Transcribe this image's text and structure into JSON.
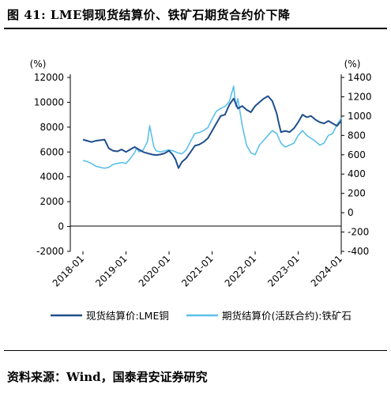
{
  "title": "图 41: LME铜现货结算价、铁矿石期货合约价下降",
  "source": "资料来源：Wind，国泰君安证券研究",
  "chart_data": {
    "type": "line",
    "title": "图 41: LME铜现货结算价、铁矿石期货合约价下降",
    "x_ticks": [
      "2018-01",
      "2019-01",
      "2020-01",
      "2021-01",
      "2022-01",
      "2023-01",
      "2024-01"
    ],
    "y_left": {
      "unit": "(%)",
      "ylim": [
        -2000,
        12000
      ],
      "ticks": [
        "-2000",
        "0",
        "2000",
        "4000",
        "6000",
        "8000",
        "10000",
        "12000"
      ]
    },
    "y_right": {
      "unit": "(%)",
      "ylim": [
        -400,
        1400
      ],
      "ticks": [
        "-400",
        "-200",
        "0",
        "200",
        "400",
        "600",
        "800",
        "1000",
        "1200",
        "1400"
      ]
    },
    "legend_position": "bottom",
    "series": [
      {
        "name": "现货结算价:LME铜",
        "axis": "left",
        "color": "#1f4e8c",
        "x": [
          2018.0,
          2018.1,
          2018.2,
          2018.3,
          2018.4,
          2018.5,
          2018.6,
          2018.7,
          2018.8,
          2018.9,
          2019.0,
          2019.1,
          2019.2,
          2019.3,
          2019.4,
          2019.5,
          2019.6,
          2019.7,
          2019.8,
          2019.9,
          2020.0,
          2020.08,
          2020.15,
          2020.22,
          2020.3,
          2020.4,
          2020.5,
          2020.6,
          2020.7,
          2020.8,
          2020.9,
          2021.0,
          2021.1,
          2021.2,
          2021.3,
          2021.4,
          2021.5,
          2021.6,
          2021.7,
          2021.8,
          2021.9,
          2022.0,
          2022.1,
          2022.2,
          2022.3,
          2022.4,
          2022.5,
          2022.55,
          2022.6,
          2022.7,
          2022.8,
          2022.9,
          2023.0,
          2023.1,
          2023.2,
          2023.3,
          2023.4,
          2023.5,
          2023.6,
          2023.7,
          2023.8,
          2023.9,
          2024.0
        ],
        "y": [
          7000,
          6900,
          6800,
          6900,
          6950,
          7000,
          6300,
          6100,
          6050,
          6200,
          6000,
          6200,
          6400,
          6200,
          6000,
          5900,
          5800,
          5750,
          5800,
          5900,
          6100,
          5800,
          5400,
          4700,
          5200,
          5500,
          6000,
          6500,
          6600,
          6800,
          7100,
          7700,
          8300,
          8900,
          9000,
          9800,
          10300,
          9500,
          9700,
          9400,
          9200,
          9700,
          10000,
          10300,
          10500,
          10100,
          9100,
          8300,
          7600,
          7700,
          7600,
          7900,
          8400,
          9000,
          8800,
          8900,
          8600,
          8400,
          8300,
          8500,
          8300,
          8100,
          8500
        ]
      },
      {
        "name": "期货结算价(活跃合约):铁矿石",
        "axis": "right",
        "color": "#5bc0eb",
        "x": [
          2018.0,
          2018.1,
          2018.2,
          2018.3,
          2018.4,
          2018.5,
          2018.6,
          2018.7,
          2018.8,
          2018.9,
          2019.0,
          2019.1,
          2019.2,
          2019.25,
          2019.3,
          2019.4,
          2019.5,
          2019.55,
          2019.6,
          2019.65,
          2019.7,
          2019.8,
          2019.9,
          2020.0,
          2020.1,
          2020.2,
          2020.3,
          2020.4,
          2020.5,
          2020.6,
          2020.7,
          2020.8,
          2020.9,
          2021.0,
          2021.1,
          2021.2,
          2021.3,
          2021.4,
          2021.5,
          2021.55,
          2021.6,
          2021.7,
          2021.8,
          2021.9,
          2022.0,
          2022.1,
          2022.2,
          2022.3,
          2022.4,
          2022.5,
          2022.6,
          2022.7,
          2022.8,
          2022.9,
          2023.0,
          2023.1,
          2023.2,
          2023.3,
          2023.4,
          2023.5,
          2023.6,
          2023.7,
          2023.8,
          2023.9,
          2024.0
        ],
        "y": [
          540,
          530,
          510,
          480,
          470,
          460,
          470,
          500,
          510,
          520,
          510,
          560,
          620,
          670,
          630,
          650,
          740,
          900,
          790,
          680,
          640,
          630,
          640,
          650,
          640,
          620,
          610,
          650,
          740,
          820,
          830,
          850,
          880,
          970,
          1050,
          1080,
          1100,
          1150,
          1310,
          1100,
          1180,
          900,
          700,
          620,
          600,
          700,
          750,
          800,
          850,
          820,
          720,
          680,
          700,
          720,
          800,
          850,
          800,
          770,
          740,
          700,
          720,
          800,
          820,
          910,
          980
        ]
      }
    ]
  }
}
